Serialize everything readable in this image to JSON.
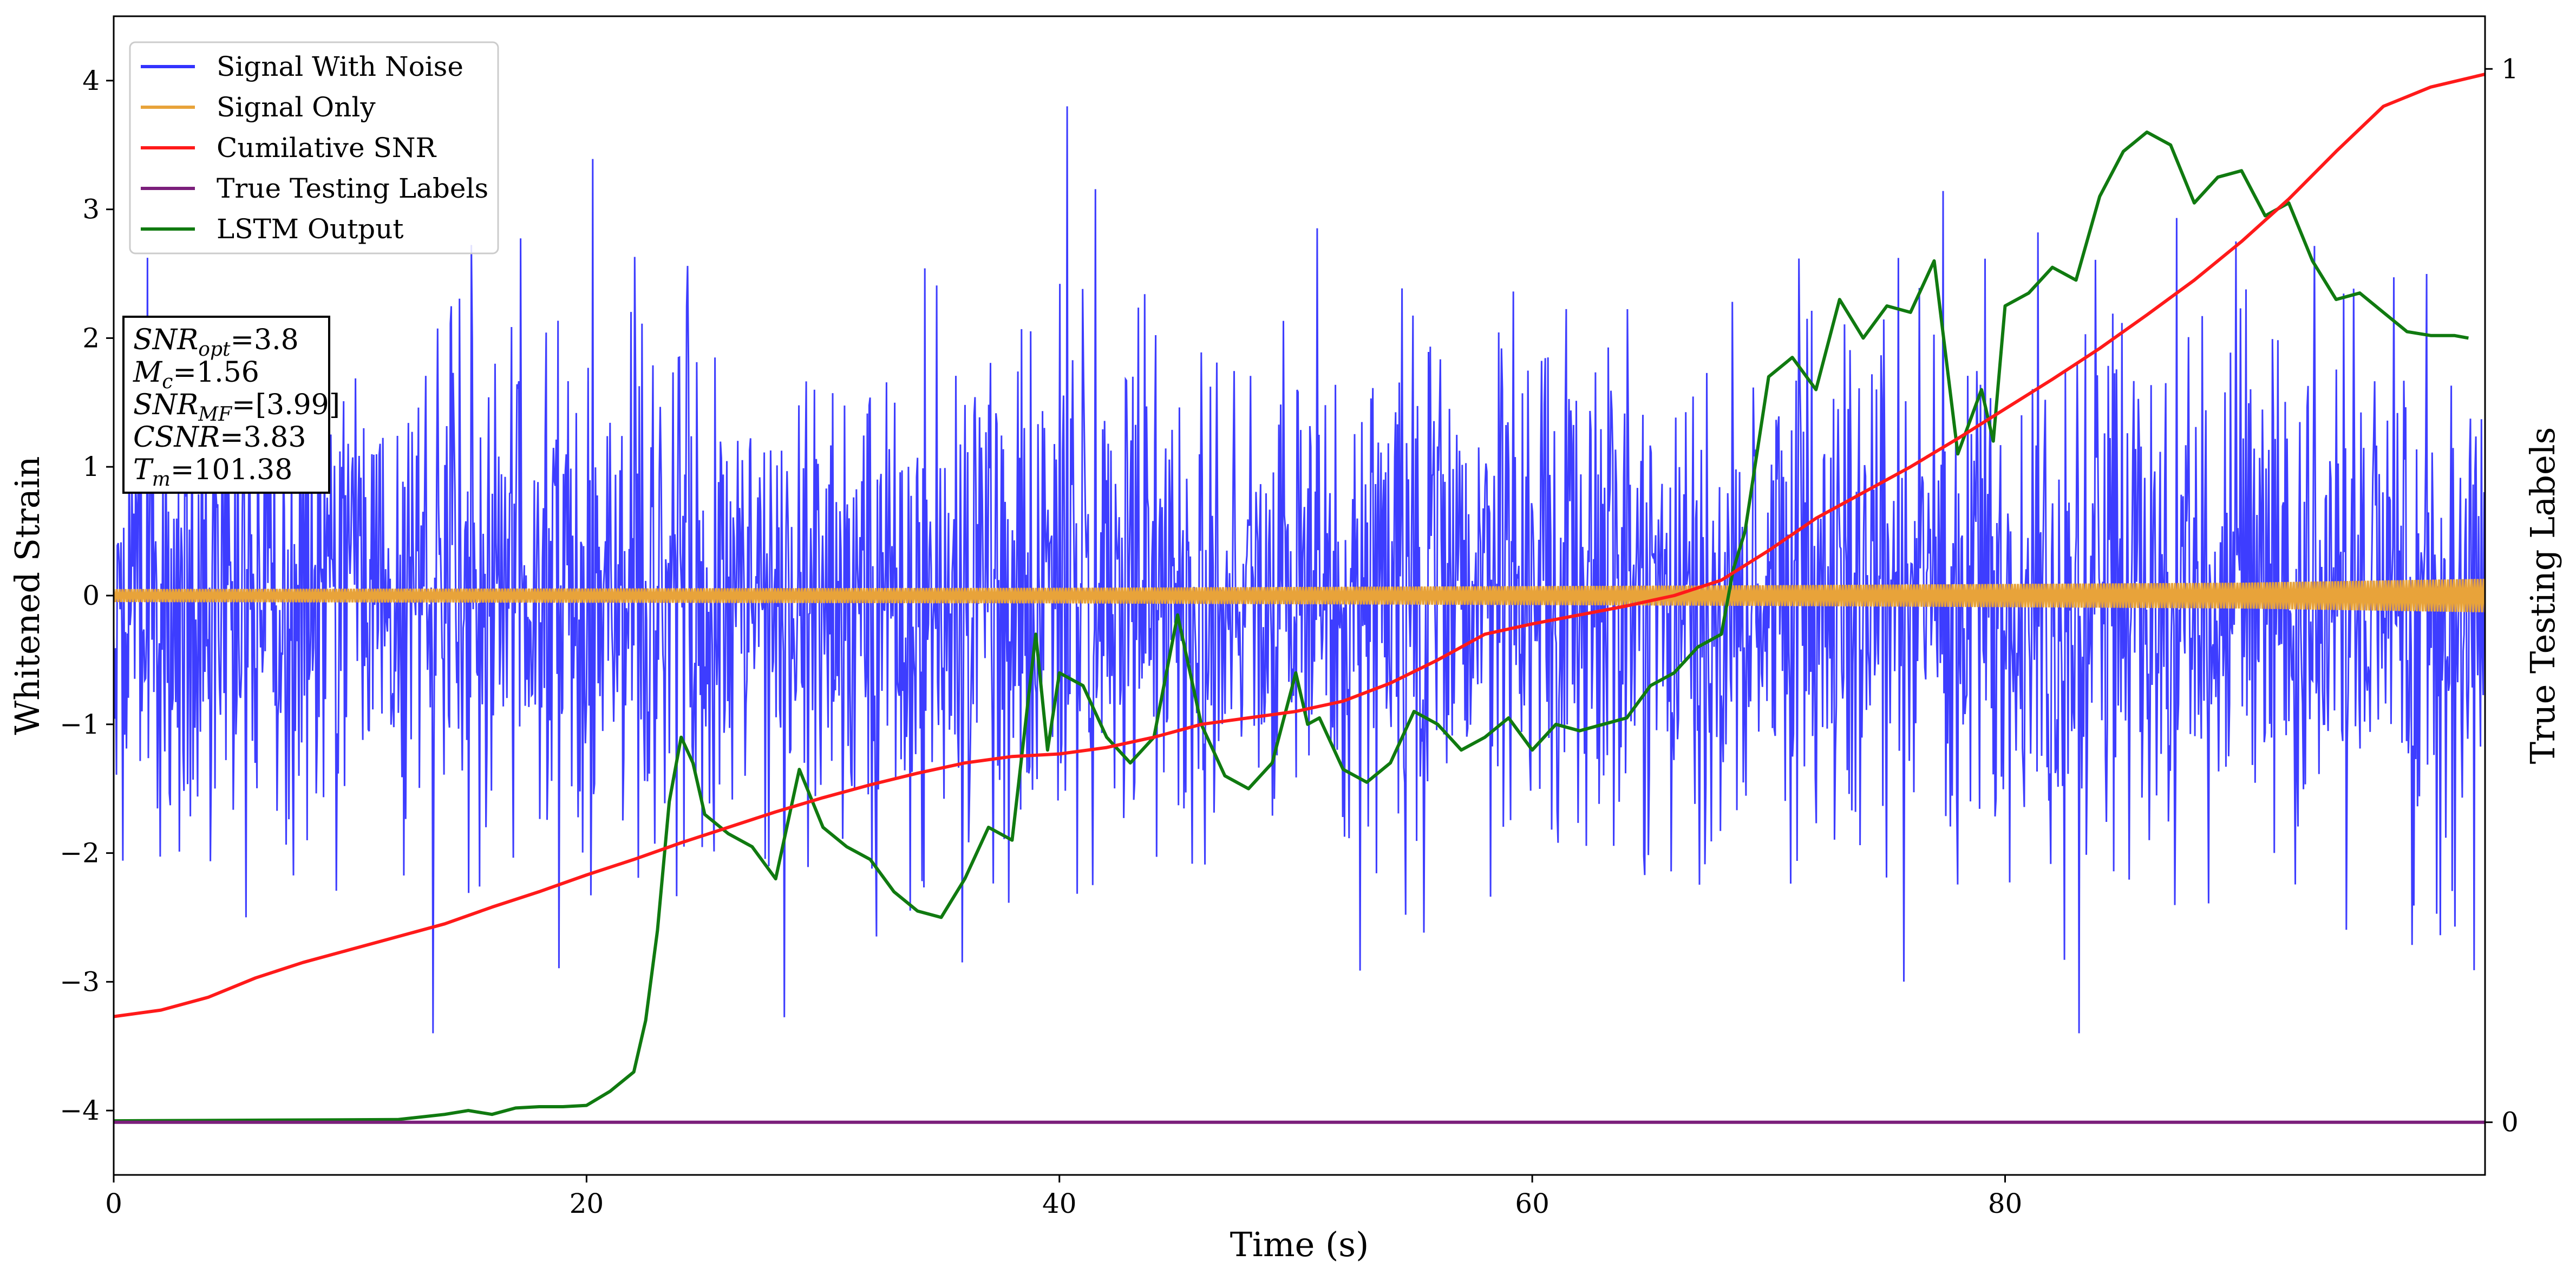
{
  "chart_data": {
    "type": "line",
    "xlabel": "Time (s)",
    "ylabel": "Whitened Strain",
    "y2label": "True Testing Labels",
    "xlim": [
      0,
      100.3
    ],
    "ylim": [
      -4.5,
      4.5
    ],
    "y2lim": [
      -0.05,
      1.05
    ],
    "xticks": [
      "0",
      "20",
      "40",
      "60",
      "80"
    ],
    "yticks": [
      "−4",
      "−3",
      "−2",
      "−1",
      "0",
      "1",
      "2",
      "3",
      "4"
    ],
    "y2ticks": [
      "0",
      "1"
    ],
    "legend_placement": "top-left",
    "grid": false,
    "annotation": [
      {
        "name": "SNR",
        "sub": "opt",
        "value": "=3.8"
      },
      {
        "name": "M",
        "sub": "c",
        "value": "=1.56"
      },
      {
        "name": "SNR",
        "sub": "MF",
        "value": "=[3.99]"
      },
      {
        "name": "CSNR",
        "sub": "",
        "value": "=3.83"
      },
      {
        "name": "T",
        "sub": "m",
        "value": "=101.38"
      }
    ],
    "series": [
      {
        "name": "Signal With Noise",
        "color": "#3333ff",
        "axis": "left",
        "description": "dense noise band",
        "envelope": {
          "x": [
            0,
            100.3
          ],
          "y_low": [
            -3.4,
            -3.4
          ],
          "y_high": [
            3.8,
            3.8
          ]
        },
        "sample_count": 2600,
        "typical_sigma": 1.0
      },
      {
        "name": "Signal Only",
        "color": "#e8a33a",
        "axis": "left",
        "amplitude": {
          "x": [
            0,
            40,
            70,
            90,
            100.3
          ],
          "y": [
            0.05,
            0.06,
            0.08,
            0.1,
            0.13
          ]
        }
      },
      {
        "name": "Cumilative SNR",
        "color": "#ff1a1a",
        "axis": "left",
        "x": [
          0,
          2,
          4,
          6,
          8,
          10,
          12,
          14,
          16,
          18,
          20,
          22,
          24,
          26,
          28,
          30,
          32,
          34,
          36,
          38,
          40,
          42,
          44,
          46,
          48,
          50,
          52,
          54,
          56,
          58,
          60,
          62,
          64,
          66,
          68,
          70,
          72,
          74,
          76,
          78,
          80,
          82,
          84,
          86,
          88,
          90,
          92,
          94,
          96,
          98,
          100.3
        ],
        "y": [
          -3.27,
          -3.22,
          -3.12,
          -2.97,
          -2.85,
          -2.75,
          -2.65,
          -2.55,
          -2.42,
          -2.3,
          -2.17,
          -2.05,
          -1.92,
          -1.8,
          -1.68,
          -1.57,
          -1.47,
          -1.38,
          -1.3,
          -1.25,
          -1.23,
          -1.18,
          -1.1,
          -1.0,
          -0.95,
          -0.9,
          -0.82,
          -0.68,
          -0.5,
          -0.3,
          -0.22,
          -0.15,
          -0.08,
          0.0,
          0.12,
          0.35,
          0.6,
          0.8,
          1.0,
          1.22,
          1.45,
          1.68,
          1.92,
          2.18,
          2.45,
          2.75,
          3.08,
          3.45,
          3.8,
          3.95,
          4.05
        ]
      },
      {
        "name": "True Testing Labels",
        "color": "#7b1f7b",
        "axis": "right",
        "x": [
          0,
          100.3
        ],
        "y": [
          0,
          0
        ]
      },
      {
        "name": "LSTM Output",
        "color": "#107a10",
        "axis": "left",
        "x": [
          0,
          12,
          14,
          15,
          16,
          17,
          18,
          19,
          20,
          21,
          22,
          22.5,
          23,
          23.5,
          24,
          24.5,
          25,
          26,
          27,
          28,
          29,
          30,
          31,
          32,
          33,
          34,
          35,
          36,
          37,
          38,
          39,
          39.5,
          40,
          41,
          42,
          43,
          44,
          45,
          46,
          47,
          48,
          49,
          50,
          50.5,
          51,
          52,
          53,
          54,
          55,
          56,
          57,
          58,
          59,
          60,
          61,
          62,
          63,
          64,
          65,
          66,
          67,
          68,
          68.5,
          69,
          69.5,
          70,
          71,
          72,
          73,
          74,
          75,
          76,
          77,
          78,
          79,
          79.5,
          80,
          81,
          82,
          83,
          84,
          85,
          86,
          87,
          88,
          89,
          90,
          91,
          92,
          93,
          94,
          95,
          96,
          97,
          98,
          99,
          99.6
        ],
        "y": [
          -4.08,
          -4.07,
          -4.03,
          -4.0,
          -4.03,
          -3.98,
          -3.97,
          -3.97,
          -3.96,
          -3.85,
          -3.7,
          -3.3,
          -2.6,
          -1.6,
          -1.1,
          -1.3,
          -1.7,
          -1.85,
          -1.95,
          -2.2,
          -1.35,
          -1.8,
          -1.95,
          -2.05,
          -2.3,
          -2.45,
          -2.5,
          -2.2,
          -1.8,
          -1.9,
          -0.3,
          -1.2,
          -0.6,
          -0.7,
          -1.1,
          -1.3,
          -1.1,
          -0.15,
          -1.0,
          -1.4,
          -1.5,
          -1.3,
          -0.6,
          -1.0,
          -0.95,
          -1.35,
          -1.45,
          -1.3,
          -0.9,
          -1.0,
          -1.2,
          -1.1,
          -0.95,
          -1.2,
          -1.0,
          -1.05,
          -1.0,
          -0.95,
          -0.7,
          -0.6,
          -0.4,
          -0.3,
          0.2,
          0.5,
          1.1,
          1.7,
          1.85,
          1.6,
          2.3,
          2.0,
          2.25,
          2.2,
          2.6,
          1.1,
          1.6,
          1.2,
          2.25,
          2.35,
          2.55,
          2.45,
          3.1,
          3.45,
          3.6,
          3.5,
          3.05,
          3.25,
          3.3,
          2.95,
          3.05,
          2.6,
          2.3,
          2.35,
          2.2,
          2.05,
          2.02,
          2.02,
          2.0
        ]
      }
    ]
  }
}
